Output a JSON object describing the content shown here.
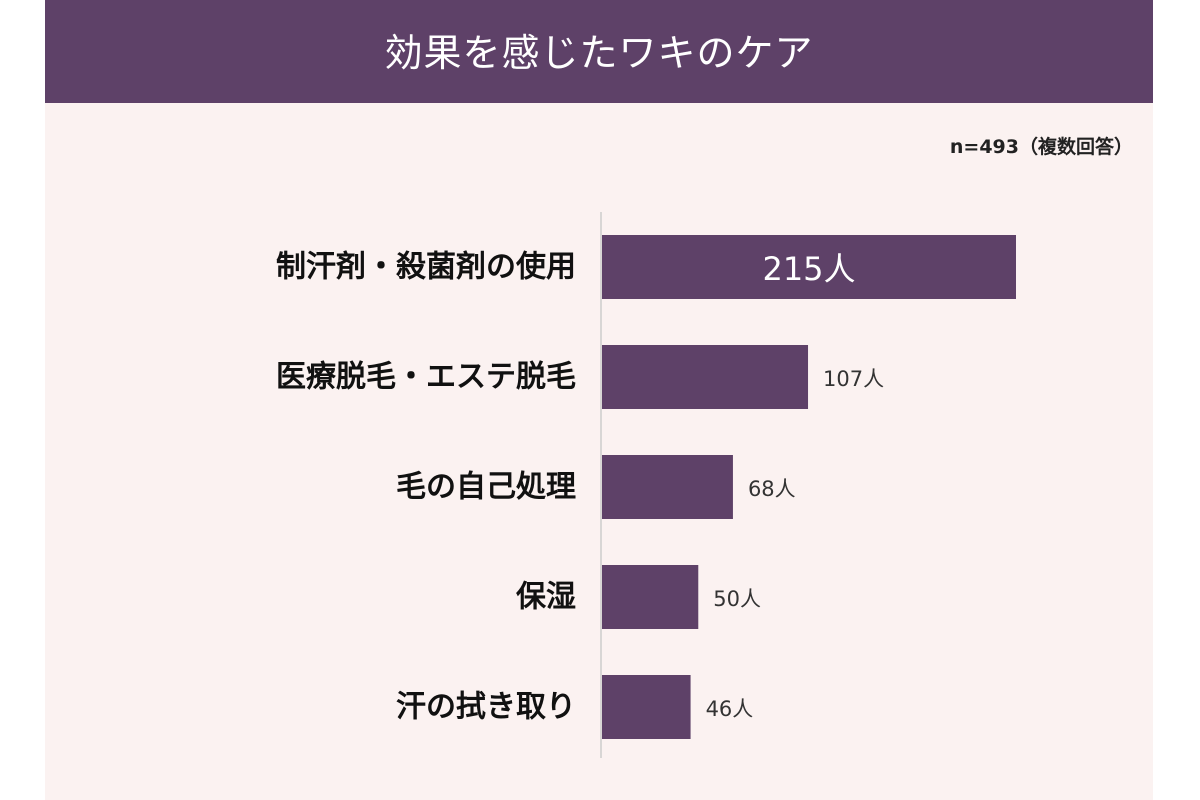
{
  "chart_data": {
    "type": "bar",
    "orientation": "horizontal",
    "title": "効果を感じたワキのケア",
    "note": "n=493（複数回答）",
    "categories": [
      "制汗剤・殺菌剤の使用",
      "医療脱毛・エステ脱毛",
      "毛の自己処理",
      "保湿",
      "汗の拭き取り"
    ],
    "values": [
      215,
      107,
      68,
      50,
      46
    ],
    "value_labels": [
      "215人",
      "107人",
      "68人",
      "50人",
      "46人"
    ],
    "xlim": [
      0,
      215
    ],
    "grid": false,
    "legend": "none",
    "colors": {
      "bar": "#5e4168",
      "header": "#5e4168",
      "background": "#fbf2f1",
      "axis": "#cccccc"
    }
  }
}
